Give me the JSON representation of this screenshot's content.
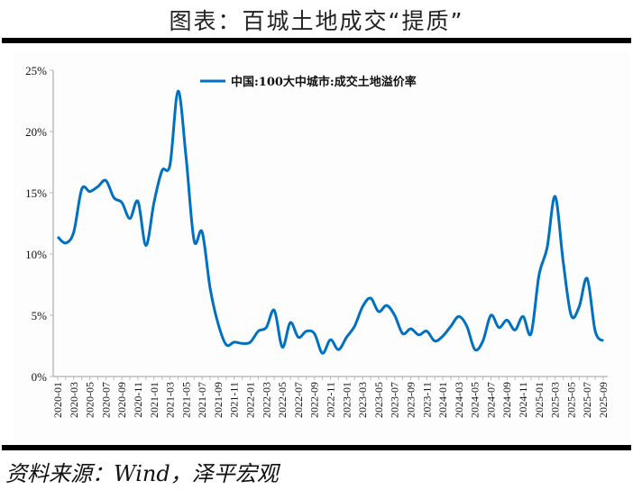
{
  "header": {
    "title": "图表：百城土地成交“提质”"
  },
  "footer": {
    "source": "资料来源：Wind，泽平宏观"
  },
  "chart_data": {
    "type": "line",
    "title": "",
    "xlabel": "",
    "ylabel": "",
    "ylim": [
      0,
      25
    ],
    "yticks": [
      "0%",
      "5%",
      "10%",
      "15%",
      "20%",
      "25%"
    ],
    "ytick_values": [
      0,
      5,
      10,
      15,
      20,
      25
    ],
    "grid": false,
    "legend": "top-center",
    "color": "#0070C0",
    "xticks": [
      "2020-01",
      "2020-03",
      "2020-05",
      "2020-07",
      "2020-09",
      "2020-11",
      "2021-01",
      "2021-03",
      "2021-05",
      "2021-07",
      "2021-09",
      "2021-11",
      "2022-01",
      "2022-03",
      "2022-05",
      "2022-07",
      "2022-09",
      "2022-11",
      "2023-01",
      "2023-03",
      "2023-05",
      "2023-07",
      "2023-09",
      "2023-11",
      "2024-01",
      "2024-03",
      "2024-05",
      "2024-07",
      "2024-09",
      "2024-11",
      "2025-01",
      "2025-03",
      "2025-05",
      "2025-07",
      "2025-09"
    ],
    "x_start": "2020-01",
    "x_end": "2025-09",
    "series": [
      {
        "name": "中国:100大中城市:成交土地溢价率",
        "values": [
          11.4,
          10.9,
          11.8,
          15.3,
          15.1,
          15.5,
          16.0,
          14.6,
          14.2,
          12.9,
          14.3,
          10.7,
          14.2,
          16.8,
          17.3,
          23.3,
          17.9,
          11.1,
          11.8,
          7.2,
          4.3,
          2.6,
          2.8,
          2.7,
          2.8,
          3.7,
          4.0,
          5.4,
          2.4,
          4.4,
          3.2,
          3.7,
          3.5,
          1.9,
          3.0,
          2.2,
          3.2,
          4.1,
          5.7,
          6.4,
          5.3,
          5.8,
          5.0,
          3.5,
          3.9,
          3.4,
          3.7,
          2.9,
          3.3,
          4.1,
          4.9,
          4.1,
          2.2,
          2.9,
          5.0,
          4.0,
          4.6,
          3.8,
          4.9,
          3.5,
          8.3,
          10.5,
          14.7,
          9.4,
          5.0,
          5.7,
          8.0,
          3.7,
          2.9
        ]
      }
    ]
  }
}
